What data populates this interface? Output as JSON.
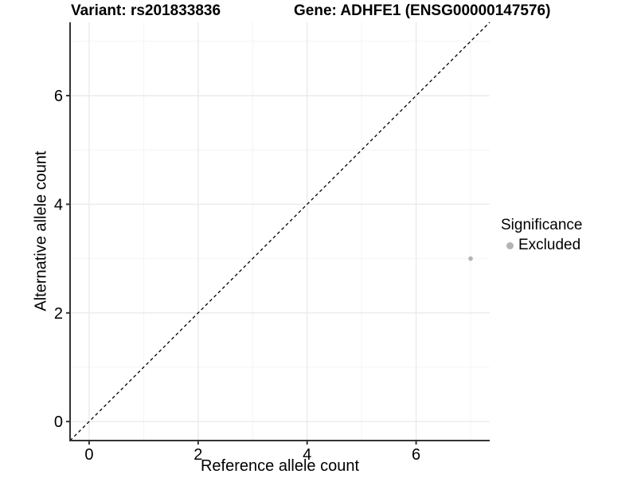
{
  "titles": {
    "variant": "Variant: rs201833836",
    "gene": "Gene: ADHFE1 (ENSG00000147576)"
  },
  "legend": {
    "title": "Significance",
    "items": [
      {
        "label": "Excluded",
        "color": "#b4b4b4"
      }
    ]
  },
  "chart_data": {
    "type": "scatter",
    "title": "Variant: rs201833836 | Gene: ADHFE1 (ENSG00000147576)",
    "xlabel": "Reference allele count",
    "ylabel": "Alternative allele count",
    "xlim": [
      -0.35,
      7.35
    ],
    "ylim": [
      -0.35,
      7.35
    ],
    "x_ticks": [
      0,
      2,
      4,
      6
    ],
    "y_ticks": [
      0,
      2,
      4,
      6
    ],
    "x_minor_ticks": [
      1,
      3,
      5,
      7
    ],
    "y_minor_ticks": [
      1,
      3,
      5,
      7
    ],
    "grid": "major+minor",
    "legend_position": "right",
    "series": [
      {
        "name": "Excluded",
        "color": "#b4b4b4",
        "points": [
          [
            7,
            3
          ]
        ]
      }
    ],
    "reference_line": {
      "slope": 1,
      "intercept": 0,
      "style": "dashed",
      "color": "#000000"
    }
  },
  "colors": {
    "background": "#ffffff",
    "axis_line": "#333333",
    "tick_mark": "#333333",
    "tick_label": "#000000",
    "grid_major": "#e9e9e9",
    "grid_minor": "#f4f4f4",
    "point": "#b4b4b4"
  }
}
